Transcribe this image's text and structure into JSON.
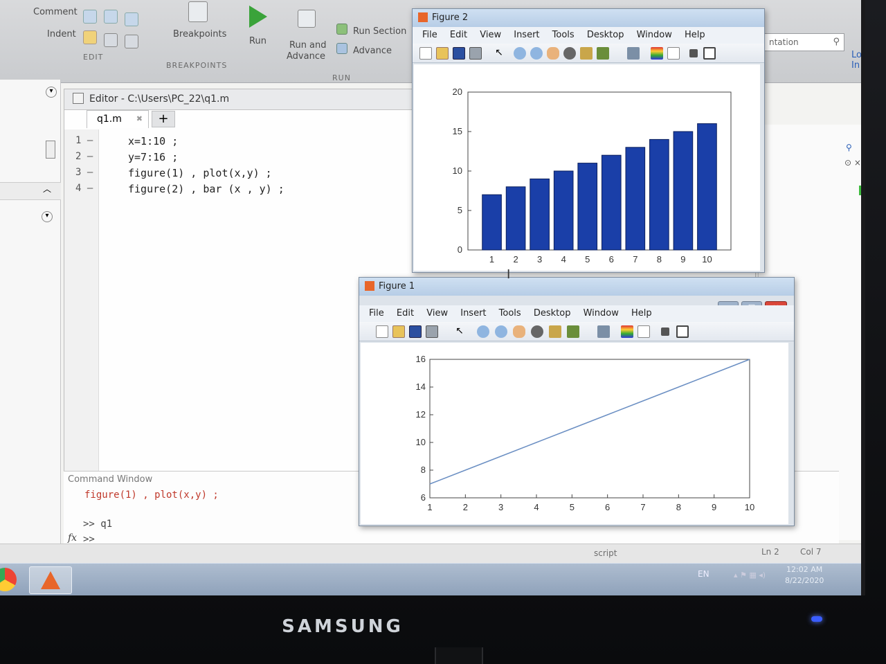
{
  "ribbon": {
    "comment_label": "Comment",
    "indent_label": "Indent",
    "breakpoints_label": "Breakpoints",
    "run_label": "Run",
    "run_advance_line1": "Run and",
    "run_advance_line2": "Advance",
    "run_section_label": "Run Section",
    "advance_label": "Advance",
    "group_edit": "EDIT",
    "group_breakpoints": "BREAKPOINTS",
    "group_run": "RUN",
    "search_partial": "ntation",
    "login_label": "Log In"
  },
  "editor": {
    "title": "Editor - C:\\Users\\PC_22\\q1.m",
    "tab_name": "q1.m",
    "tab_close": "✖",
    "new_tab": "+",
    "lines": [
      {
        "num": "1",
        "code": "x=1:10 ;"
      },
      {
        "num": "2",
        "code": "y=7:16 ;"
      },
      {
        "num": "3",
        "code": "figure(1) , plot(x,y) ;"
      },
      {
        "num": "4",
        "code": "figure(2) , bar (x , y) ;"
      }
    ]
  },
  "command_window": {
    "title": "Command Window",
    "echo": "figure(1) , plot(x,y) ;",
    "prompt_run": ">> q1",
    "prompt_fx": "fx",
    "prompt_empty": ">>"
  },
  "status": {
    "script": "script",
    "ln": "Ln  2",
    "col": "Col  7"
  },
  "taskbar": {
    "lang": "EN",
    "time": "12:02 AM",
    "date": "8/22/2020"
  },
  "monitor": {
    "brand": "SAMSUNG"
  },
  "figure2": {
    "title": "Figure 2",
    "menu": [
      "File",
      "Edit",
      "View",
      "Insert",
      "Tools",
      "Desktop",
      "Window",
      "Help"
    ]
  },
  "figure1": {
    "title": "Figure 1",
    "menu": [
      "File",
      "Edit",
      "View",
      "Insert",
      "Tools",
      "Desktop",
      "Window",
      "Help"
    ]
  },
  "colors": {
    "bar": "#1a3fa8",
    "line": "#6b8fc3",
    "accent_link": "#2a5fb8"
  },
  "chart_data": [
    {
      "type": "bar",
      "title": "",
      "xlabel": "",
      "ylabel": "",
      "categories": [
        "1",
        "2",
        "3",
        "4",
        "5",
        "6",
        "7",
        "8",
        "9",
        "10"
      ],
      "values": [
        7,
        8,
        9,
        10,
        11,
        12,
        13,
        14,
        15,
        16
      ],
      "ylim": [
        0,
        20
      ],
      "yticks": [
        "0",
        "5",
        "10",
        "15",
        "20"
      ],
      "grid": false
    },
    {
      "type": "line",
      "title": "",
      "xlabel": "",
      "ylabel": "",
      "x": [
        1,
        2,
        3,
        4,
        5,
        6,
        7,
        8,
        9,
        10
      ],
      "y": [
        7,
        8,
        9,
        10,
        11,
        12,
        13,
        14,
        15,
        16
      ],
      "xlim": [
        1,
        10
      ],
      "ylim": [
        6,
        16
      ],
      "xticks": [
        "1",
        "2",
        "3",
        "4",
        "5",
        "6",
        "7",
        "8",
        "9",
        "10"
      ],
      "yticks": [
        "6",
        "8",
        "10",
        "12",
        "14",
        "16"
      ],
      "grid": false
    }
  ]
}
